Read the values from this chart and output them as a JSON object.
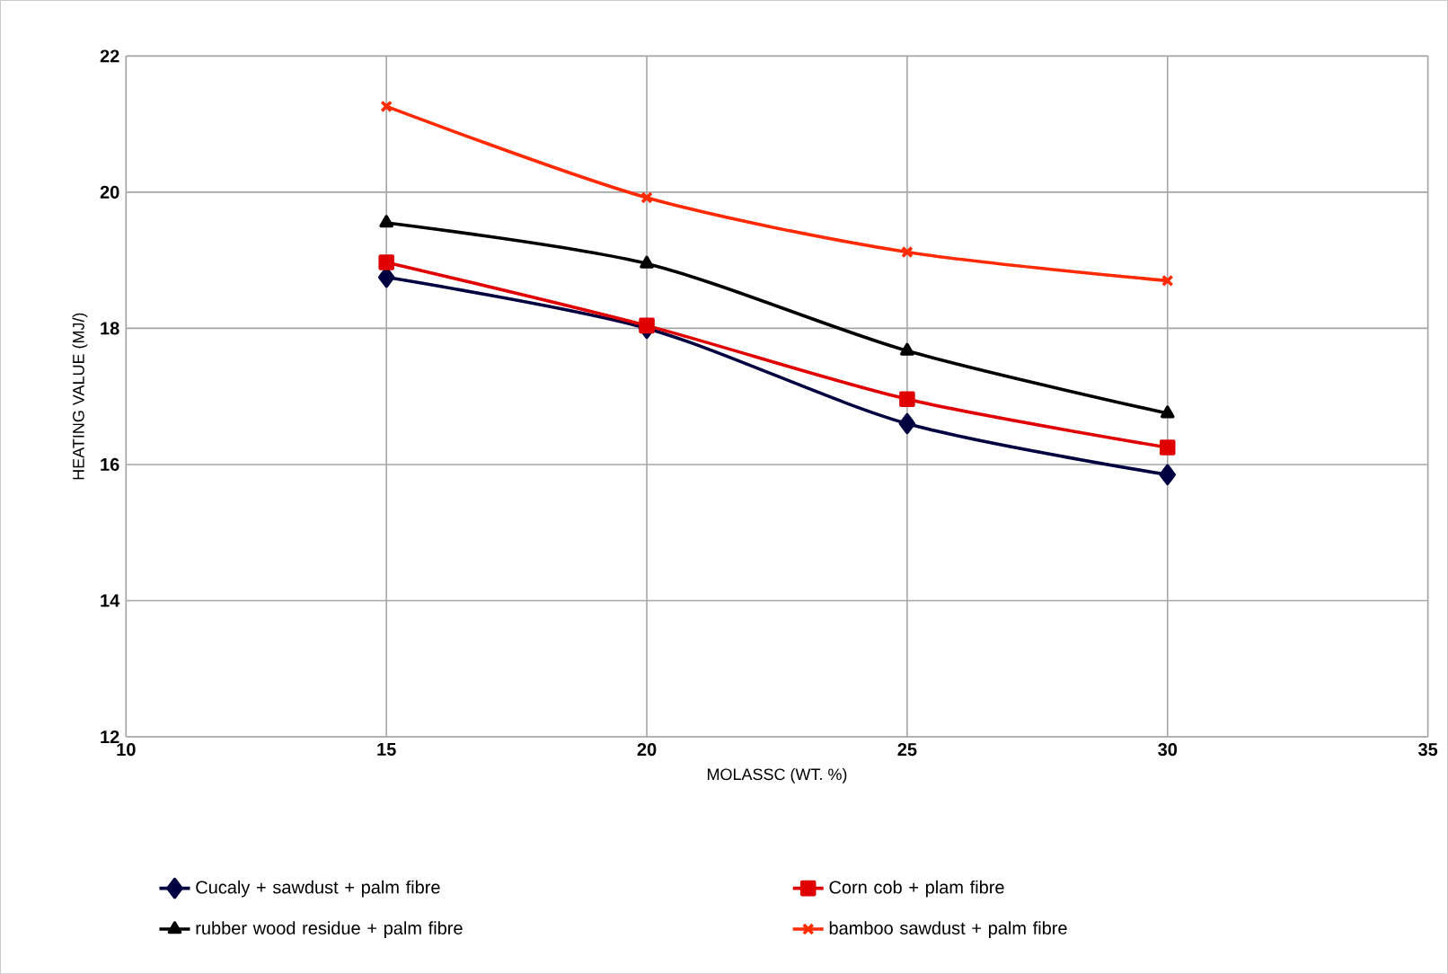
{
  "chart_data": {
    "type": "line",
    "xlabel": "MOLASSC (WT. %)",
    "ylabel": "HEATING VALUE (MJ/)",
    "x": [
      15,
      20,
      25,
      30
    ],
    "xlim": [
      10,
      35
    ],
    "xticks": [
      10,
      15,
      20,
      25,
      30,
      35
    ],
    "ylim": [
      12,
      22
    ],
    "yticks": [
      12,
      14,
      16,
      18,
      20,
      22
    ],
    "grid": true,
    "legend": "bottom",
    "line_style": "solid",
    "series": [
      {
        "name": "Cucaly + sawdust + palm fibre",
        "color": "#000040",
        "marker": "diamond",
        "values": [
          18.75,
          18.0,
          16.6,
          15.85
        ]
      },
      {
        "name": "Corn cob + plam fibre",
        "color": "#e00000",
        "marker": "square",
        "values": [
          18.97,
          18.04,
          16.96,
          16.25
        ]
      },
      {
        "name": "rubber wood residue + palm fibre",
        "color": "#000000",
        "marker": "triangle",
        "values": [
          19.55,
          18.95,
          17.67,
          16.75
        ]
      },
      {
        "name": "bamboo sawdust + palm  fibre",
        "color": "#ff2a00",
        "marker": "cross",
        "values": [
          21.26,
          19.92,
          19.12,
          18.7
        ]
      }
    ]
  }
}
